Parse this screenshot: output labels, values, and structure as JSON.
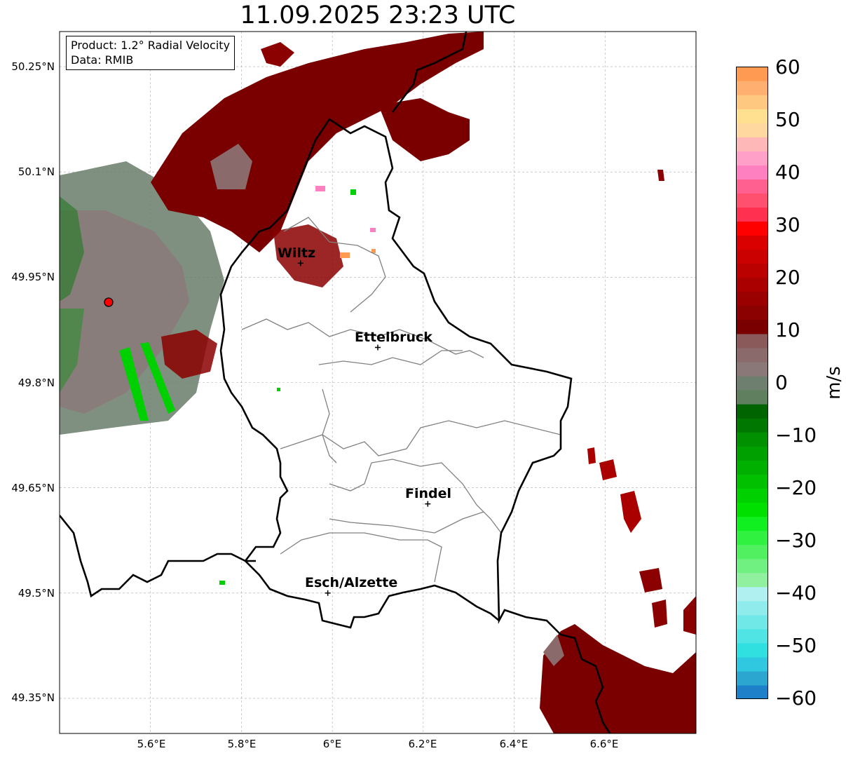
{
  "title": "11.09.2025 23:23 UTC",
  "info": {
    "product": "Product: 1.2° Radial Velocity",
    "data_source": "Data: RMIB"
  },
  "axes": {
    "lat_ticks": [
      "50.25°N",
      "50.1°N",
      "49.95°N",
      "49.8°N",
      "49.65°N",
      "49.5°N",
      "49.35°N"
    ],
    "lon_ticks": [
      "5.6°E",
      "5.8°E",
      "6°E",
      "6.2°E",
      "6.4°E",
      "6.6°E"
    ],
    "lat_range": [
      49.3,
      50.3
    ],
    "lon_range": [
      5.4,
      6.8
    ],
    "grid": true
  },
  "cities": [
    {
      "name": "Wiltz",
      "lon": 5.93,
      "lat": 49.97
    },
    {
      "name": "Ettelbruck",
      "lon": 6.1,
      "lat": 49.85
    },
    {
      "name": "Findel",
      "lon": 6.21,
      "lat": 49.627
    },
    {
      "name": "Esch/Alzette",
      "lon": 5.99,
      "lat": 49.5
    }
  ],
  "radar_site": {
    "lon": 5.51,
    "lat": 49.915,
    "color": "#ff0000"
  },
  "colorbar": {
    "label": "m/s",
    "ticks": [
      "60",
      "50",
      "40",
      "30",
      "20",
      "10",
      "0",
      "−10",
      "−20",
      "−30",
      "−40",
      "−50",
      "−60"
    ],
    "range": [
      -60,
      60
    ],
    "colors": {
      "positive_high": "#ff9a52",
      "positive_pink": "#ff80c0",
      "positive_red": "#ff0000",
      "positive_dark": "#7a0000",
      "zero_gray": "#8a7878",
      "zero_green": "#5f7f5f",
      "negative_dark_green": "#006400",
      "negative_green": "#00e000",
      "negative_light_green": "#90f0a0",
      "negative_cyan": "#30e0e0",
      "negative_blue": "#1e80c8"
    }
  }
}
